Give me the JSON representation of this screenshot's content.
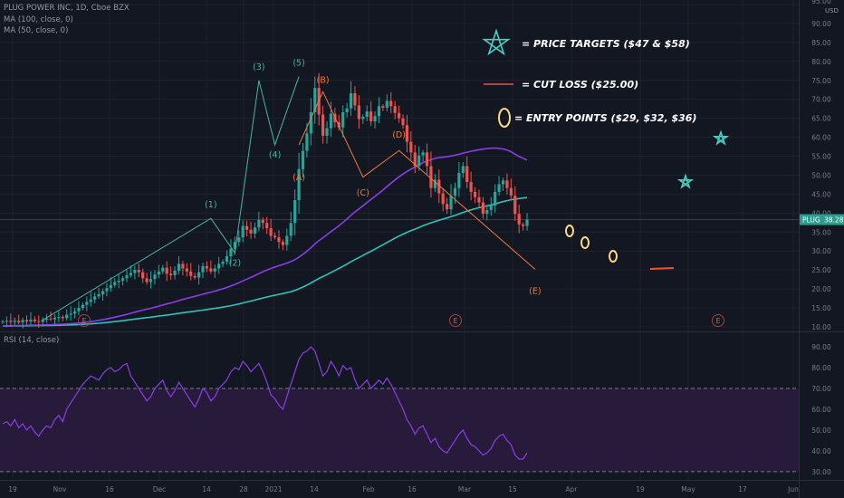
{
  "header": {
    "symbol_line": "PLUG POWER INC, 1D, Cboe BZX",
    "ma100_label": "MA (100, close, 0)",
    "ma50_label": "MA (50, close, 0)",
    "rsi_label": "RSI (14, close)",
    "price_unit": "USD"
  },
  "price_tag": {
    "symbol": "PLUG",
    "value": "38.28"
  },
  "annotations": {
    "legend": [
      {
        "text": "= PRICE TARGETS ($47 & $58)",
        "icon": "star-icon"
      },
      {
        "text": "= CUT LOSS ($25.00)",
        "icon": "line-icon"
      },
      {
        "text": "= ENTRY POINTS ($29, $32, $36)",
        "icon": "circle-icon"
      }
    ],
    "wave_labels_primary": [
      "(1)",
      "(2)",
      "(3)",
      "(4)",
      "(5)"
    ],
    "wave_labels_corrective": [
      "(A)",
      "(B)",
      "(C)",
      "(D)",
      "(E)"
    ],
    "earnings_marker": "E"
  },
  "colors": {
    "background": "#131722",
    "up": "#26a69a",
    "down": "#ef5350",
    "ma100": "#2ec4b6",
    "ma50": "#8a3ee8",
    "rsi": "#8a3ee8",
    "wave_primary": "#4ab3a5",
    "wave_corrective": "#f0783c",
    "entry": "#ffd98a",
    "target": "#4ecdc4",
    "cutloss": "#f0503c"
  },
  "chart_data": [
    {
      "type": "candlestick",
      "title": "PLUG POWER INC, 1D, Cboe BZX",
      "ylabel": "USD",
      "ylim": [
        9.5,
        95
      ],
      "y_ticks": [
        "95.00",
        "90.00",
        "85.00",
        "80.00",
        "75.00",
        "70.00",
        "65.00",
        "60.00",
        "55.00",
        "50.00",
        "45.00",
        "40.00",
        "35.00",
        "30.00",
        "25.00",
        "20.00",
        "15.00",
        "10.00"
      ],
      "x_ticks": [
        "19",
        "Nov",
        "16",
        "Dec",
        "14",
        "28",
        "2021",
        "14",
        "Feb",
        "16",
        "Mar",
        "15",
        "Apr",
        "19",
        "May",
        "17",
        "Jun"
      ],
      "close": [
        11.4,
        11.6,
        11.3,
        11.6,
        11.2,
        11.8,
        11.4,
        11.9,
        11.5,
        11.3,
        11.9,
        12.2,
        12.0,
        12.4,
        12.6,
        12.3,
        13.2,
        13.5,
        14.1,
        15.0,
        15.8,
        16.6,
        17.2,
        18.0,
        18.6,
        19.4,
        20.2,
        21.0,
        21.8,
        22.2,
        22.8,
        23.6,
        24.2,
        25.0,
        24.4,
        22.8,
        21.8,
        22.6,
        23.8,
        24.6,
        25.6,
        24.0,
        23.6,
        24.8,
        26.6,
        25.4,
        24.6,
        23.4,
        23.0,
        24.4,
        26.0,
        25.4,
        24.6,
        25.4,
        26.6,
        27.2,
        28.6,
        30.6,
        32.4,
        33.6,
        36.6,
        35.6,
        34.6,
        36.2,
        38.2,
        37.4,
        36.0,
        34.0,
        33.6,
        32.4,
        31.6,
        34.0,
        37.4,
        43.4,
        51.6,
        56.4,
        61.0,
        66.6,
        73.0,
        66.0,
        60.4,
        62.4,
        66.2,
        64.0,
        62.6,
        66.6,
        67.6,
        71.6,
        68.4,
        64.8,
        65.4,
        66.8,
        64.2,
        65.6,
        68.2,
        67.8,
        69.6,
        68.2,
        66.4,
        65.0,
        63.2,
        58.8,
        56.0,
        52.4,
        55.2,
        56.0,
        52.4,
        46.6,
        48.8,
        45.2,
        42.4,
        41.0,
        44.6,
        46.6,
        50.6,
        52.4,
        48.2,
        45.6,
        44.2,
        42.8,
        39.8,
        40.8,
        42.0,
        45.6,
        47.6,
        48.6,
        46.6,
        44.6,
        39.8,
        37.0,
        36.6,
        38.28
      ],
      "x_range_dates": [
        "Oct 19, 2020",
        "Jun 2021"
      ],
      "annotations": [
        {
          "label": "(1)",
          "date_index": 52,
          "price": 38.6
        },
        {
          "label": "(2)",
          "date_index": 58,
          "price": 29.5
        },
        {
          "label": "(3)",
          "date_index": 64,
          "price": 75.0
        },
        {
          "label": "(4)",
          "date_index": 68,
          "price": 58.0
        },
        {
          "label": "(5)",
          "date_index": 74,
          "price": 76.0
        },
        {
          "label": "(A)",
          "date_index": 74,
          "price": 53.0
        },
        {
          "label": "(B)",
          "date_index": 80,
          "price": 71.5
        },
        {
          "label": "(C)",
          "date_index": 90,
          "price": 48.0
        },
        {
          "label": "(D)",
          "date_index": 99,
          "price": 57.0
        },
        {
          "label": "(E)",
          "date_index": 133,
          "price": 23.0
        }
      ]
    },
    {
      "type": "line",
      "title": "RSI (14, close)",
      "ylim": [
        29,
        97
      ],
      "y_ticks": [
        "90.00",
        "80.00",
        "70.00",
        "60.00",
        "50.00",
        "40.00",
        "30.00"
      ],
      "bands": [
        30,
        70
      ],
      "series": [
        {
          "name": "RSI (14, close)",
          "values": [
            53,
            54,
            52,
            55,
            51,
            53,
            50,
            52,
            49,
            47,
            50,
            52,
            51,
            55,
            57,
            54,
            60,
            63,
            66,
            69,
            72,
            74,
            76,
            75,
            74,
            77,
            79,
            80,
            78,
            79,
            81,
            82,
            76,
            73,
            70,
            67,
            64,
            66,
            70,
            72,
            74,
            69,
            66,
            69,
            73,
            70,
            67,
            64,
            61,
            65,
            70,
            68,
            64,
            66,
            70,
            72,
            74,
            78,
            80,
            79,
            83,
            81,
            78,
            80,
            82,
            78,
            73,
            67,
            65,
            62,
            60,
            66,
            72,
            78,
            84,
            87,
            88,
            90,
            88,
            82,
            76,
            78,
            83,
            80,
            76,
            81,
            79,
            80,
            74,
            70,
            72,
            74,
            70,
            72,
            74,
            72,
            75,
            72,
            68,
            64,
            60,
            55,
            52,
            48,
            51,
            52,
            48,
            44,
            46,
            42,
            40,
            39,
            42,
            45,
            48,
            50,
            46,
            43,
            42,
            40,
            38,
            39,
            41,
            45,
            47,
            48,
            45,
            43,
            38,
            36,
            36,
            39
          ]
        }
      ]
    }
  ]
}
